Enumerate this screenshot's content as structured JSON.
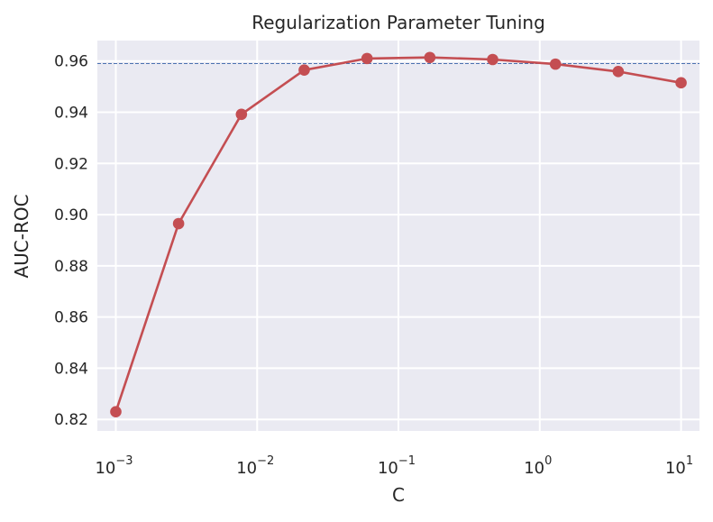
{
  "chart_data": {
    "type": "line",
    "title": "Regularization Parameter Tuning",
    "xlabel": "C",
    "ylabel": "AUC-ROC",
    "x_scale": "log",
    "xlim": [
      0.00074,
      13.5
    ],
    "ylim": [
      0.8155,
      0.968
    ],
    "grid": true,
    "x_ticks": [
      {
        "base": "10",
        "exp": "−3",
        "value": 0.001
      },
      {
        "base": "10",
        "exp": "−2",
        "value": 0.01
      },
      {
        "base": "10",
        "exp": "−1",
        "value": 0.1
      },
      {
        "base": "10",
        "exp": "0",
        "value": 1
      },
      {
        "base": "10",
        "exp": "1",
        "value": 10
      }
    ],
    "y_ticks": [
      "0.82",
      "0.84",
      "0.86",
      "0.88",
      "0.90",
      "0.92",
      "0.94",
      "0.96"
    ],
    "series": [
      {
        "color": "#c44e52",
        "x": [
          0.001,
          0.00278,
          0.00774,
          0.02154,
          0.05995,
          0.16681,
          0.46416,
          1.29155,
          3.59381,
          10
        ],
        "y": [
          0.823,
          0.8965,
          0.9392,
          0.9565,
          0.961,
          0.9614,
          0.9606,
          0.9588,
          0.9559,
          0.9515
        ]
      }
    ],
    "reference_line": {
      "y": 0.959,
      "color": "#4c72b0",
      "style": "dashed"
    }
  }
}
